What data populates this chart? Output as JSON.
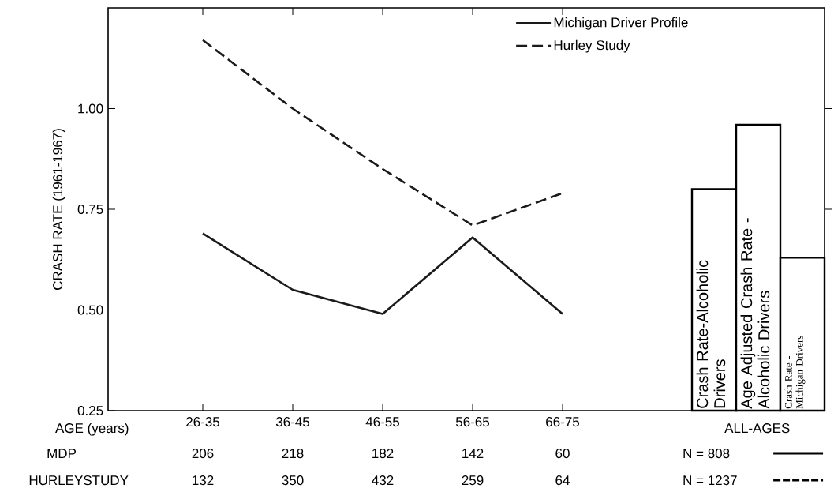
{
  "chart_data": [
    {
      "type": "line",
      "xlabel": "AGE (years)",
      "ylabel": "CRASH RATE (1961-1967)",
      "categories": [
        "26-35",
        "36-45",
        "46-55",
        "56-65",
        "66-75"
      ],
      "series": [
        {
          "name": "Michigan Driver Profile",
          "color": "#1a1a1a",
          "line_style": "solid",
          "values": [
            0.69,
            0.55,
            0.49,
            0.68,
            0.49
          ]
        },
        {
          "name": "Hurley Study",
          "color": "#1a1a1a",
          "line_style": "dashed",
          "values": [
            1.17,
            1.0,
            0.85,
            0.71,
            0.79
          ]
        }
      ],
      "ylim": [
        0.25,
        1.25
      ],
      "yticks": [
        {
          "value": 0.25,
          "label": "0.25"
        },
        {
          "value": 0.5,
          "label": "0.50"
        },
        {
          "value": 0.75,
          "label": "0.75"
        },
        {
          "value": 1.0,
          "label": "1.00"
        }
      ],
      "legend": "top right",
      "annotations": [
        "MDP",
        "206",
        "218",
        "182",
        "142",
        "60",
        "HURLEYSTUDY",
        "132",
        "350",
        "432",
        "259",
        "64"
      ]
    },
    {
      "type": "bar",
      "xlabel": "ALL-AGES",
      "categories": [
        "Crash Rate-Alcoholic Drivers",
        "Age Adjusted Crash Rate - Alcoholic Drivers",
        "Crash Rate - Michigan Drivers"
      ],
      "values": [
        0.8,
        0.96,
        0.63
      ],
      "color": "#ffffff",
      "ylim": [
        0.25,
        1.25
      ],
      "yticks": [
        {
          "value": 0.5,
          "label": null
        },
        {
          "value": 0.75,
          "label": null
        },
        {
          "value": 1.0,
          "label": null
        }
      ],
      "tick_labels": "x",
      "annotations": [
        "N = 808",
        "N = 1237"
      ]
    }
  ]
}
